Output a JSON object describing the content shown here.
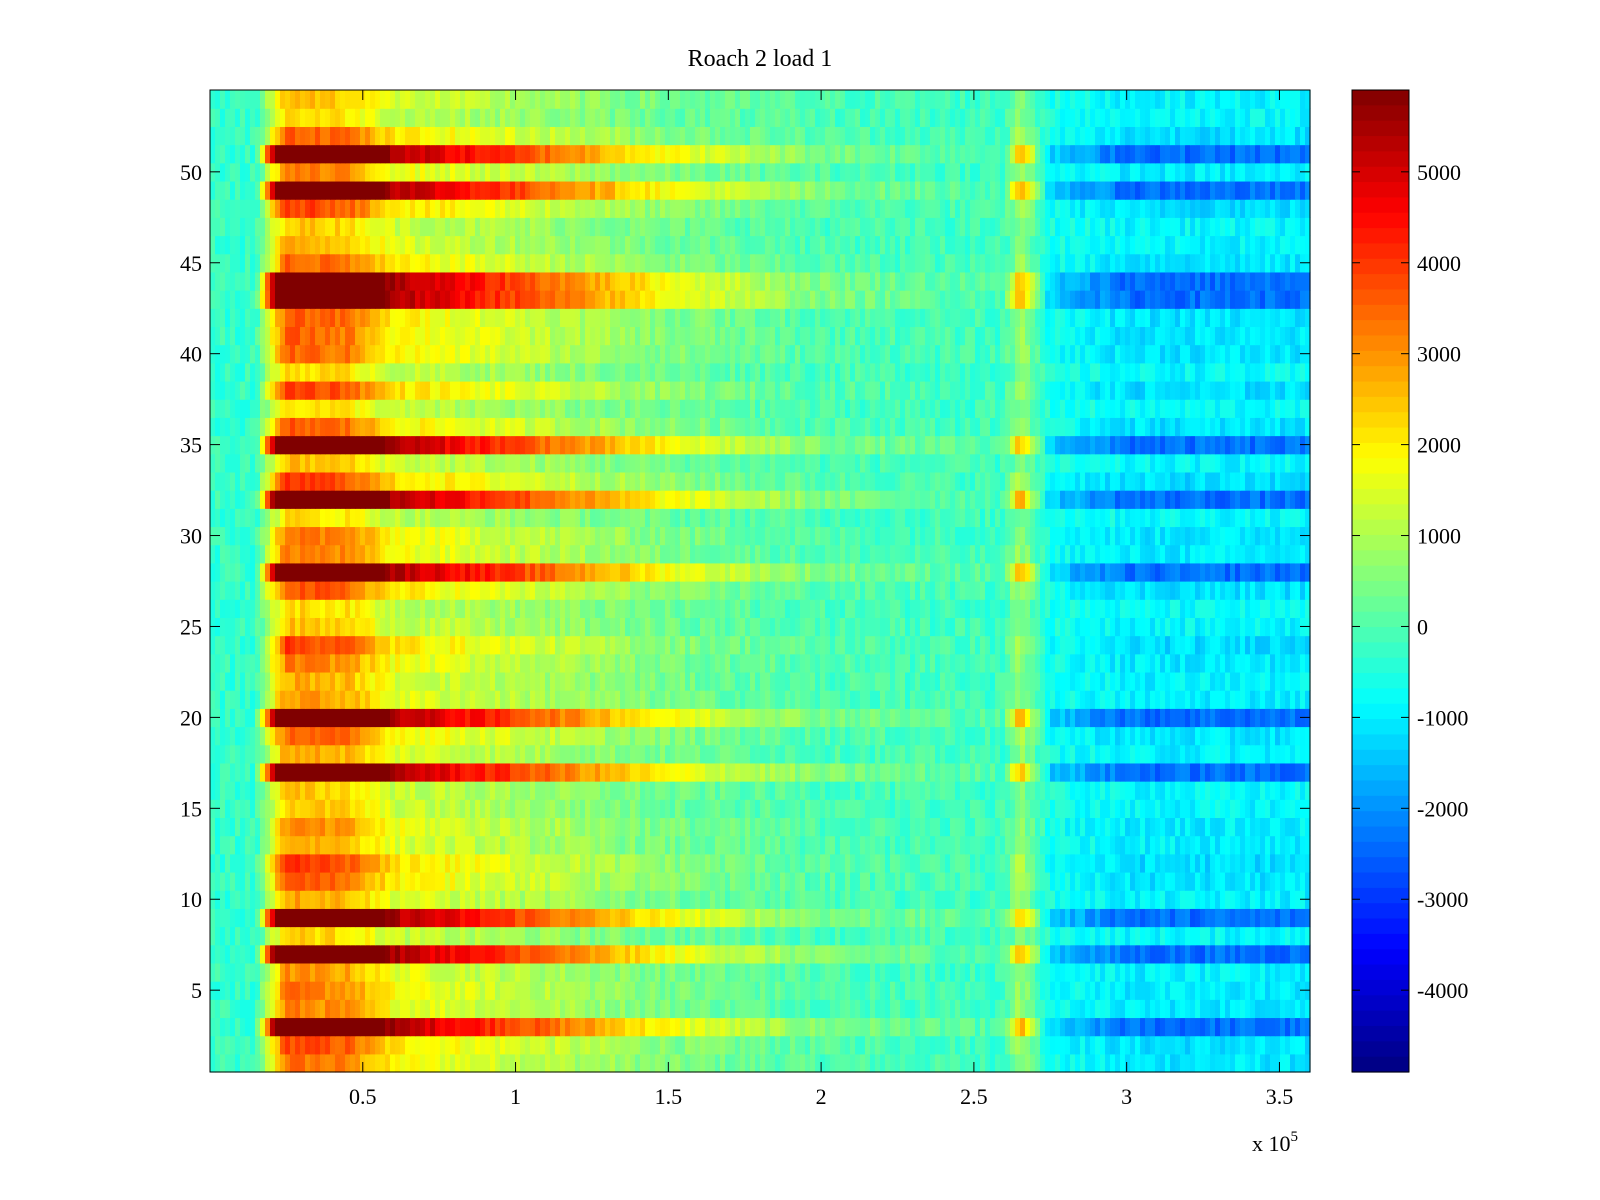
{
  "chart_data": {
    "type": "heatmap",
    "title": "Roach 2 load 1",
    "xlabel": "",
    "ylabel": "",
    "x_exponent_label": "x 10",
    "x_exponent_power": "5",
    "xlim": [
      0,
      3.6
    ],
    "ylim": [
      0.5,
      54.5
    ],
    "x_ticks": [
      {
        "value": 0.5,
        "label": "0.5"
      },
      {
        "value": 1,
        "label": "1"
      },
      {
        "value": 1.5,
        "label": "1.5"
      },
      {
        "value": 2,
        "label": "2"
      },
      {
        "value": 2.5,
        "label": "2.5"
      },
      {
        "value": 3,
        "label": "3"
      },
      {
        "value": 3.5,
        "label": "3.5"
      }
    ],
    "y_ticks": [
      {
        "value": 5,
        "label": "5"
      },
      {
        "value": 10,
        "label": "10"
      },
      {
        "value": 15,
        "label": "15"
      },
      {
        "value": 20,
        "label": "20"
      },
      {
        "value": 25,
        "label": "25"
      },
      {
        "value": 30,
        "label": "30"
      },
      {
        "value": 35,
        "label": "35"
      },
      {
        "value": 40,
        "label": "40"
      },
      {
        "value": 45,
        "label": "45"
      },
      {
        "value": 50,
        "label": "50"
      }
    ],
    "colorbar": {
      "colormap": "jet",
      "clim": [
        -4900,
        5900
      ],
      "ticks": [
        {
          "value": 5000,
          "label": "5000"
        },
        {
          "value": 4000,
          "label": "4000"
        },
        {
          "value": 3000,
          "label": "3000"
        },
        {
          "value": 2000,
          "label": "2000"
        },
        {
          "value": 1000,
          "label": "1000"
        },
        {
          "value": 0,
          "label": "0"
        },
        {
          "value": -1000,
          "label": "-1000"
        },
        {
          "value": -2000,
          "label": "-2000"
        },
        {
          "value": -3000,
          "label": "-3000"
        },
        {
          "value": -4000,
          "label": "-4000"
        }
      ]
    },
    "rows": 54,
    "x_profile_breakpoints": [
      0.0,
      0.15,
      0.25,
      0.45,
      0.6,
      1.0,
      1.5,
      2.0,
      2.6,
      2.65,
      2.75,
      3.0,
      3.6
    ],
    "x_profile_values": [
      -300,
      -300,
      3500,
      3200,
      1900,
      1300,
      500,
      0,
      -200,
      900,
      -700,
      -1100,
      -1100
    ],
    "strong_rows": [
      3,
      7,
      9,
      17,
      20,
      28,
      32,
      35,
      43,
      44,
      49,
      51
    ],
    "strong_row_amplitude": 2.6,
    "background_value": -300,
    "noise_amplitude": 700
  }
}
